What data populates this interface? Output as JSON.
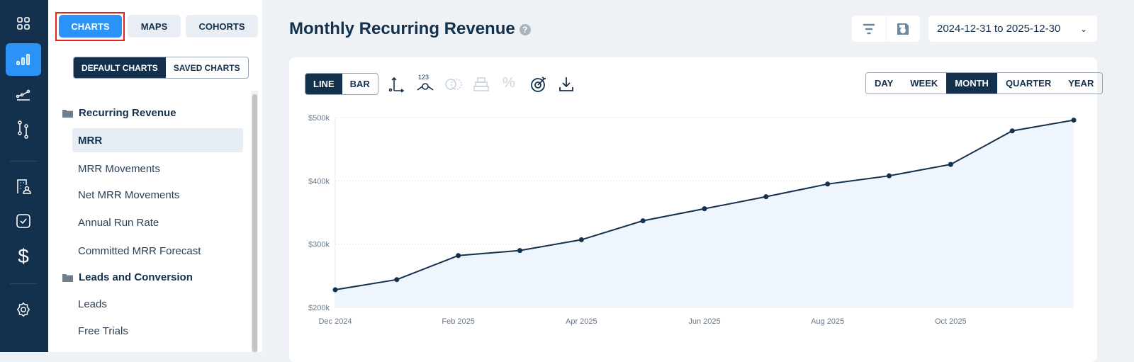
{
  "rail": {
    "items": [
      "dashboard-icon",
      "charts-icon",
      "trend-icon",
      "flow-icon",
      "customers-icon",
      "tasks-icon",
      "billing-icon",
      "settings-icon"
    ],
    "active": "charts-icon"
  },
  "sidebar": {
    "tabs": [
      "CHARTS",
      "MAPS",
      "COHORTS"
    ],
    "active_tab": "CHARTS",
    "segments": [
      "DEFAULT CHARTS",
      "SAVED CHARTS"
    ],
    "active_segment": "DEFAULT CHARTS",
    "groups": [
      {
        "label": "Recurring Revenue",
        "items": [
          "MRR",
          "MRR Movements",
          "Net MRR Movements",
          "Annual Run Rate",
          "Committed MRR Forecast"
        ]
      },
      {
        "label": "Leads and Conversion",
        "items": [
          "Leads",
          "Free Trials"
        ]
      }
    ],
    "selected": "MRR"
  },
  "header": {
    "title": "Monthly Recurring Revenue",
    "help": "?",
    "date_range": "2024-12-31 to 2025-12-30"
  },
  "toolbar": {
    "chart_types": [
      "LINE",
      "BAR"
    ],
    "active_type": "LINE",
    "periods": [
      "DAY",
      "WEEK",
      "MONTH",
      "QUARTER",
      "YEAR"
    ],
    "active_period": "MONTH",
    "number_label": "123",
    "percent": "%"
  },
  "colors": {
    "accent": "#2b93f7",
    "navy": "#13304d",
    "fill": "#eef5fd"
  },
  "chart_data": {
    "type": "area",
    "x": [
      "Dec 2024",
      "Jan 2025",
      "Feb 2025",
      "Mar 2025",
      "Apr 2025",
      "May 2025",
      "Jun 2025",
      "Jul 2025",
      "Aug 2025",
      "Sep 2025",
      "Oct 2025",
      "Nov 2025",
      "Dec 2025"
    ],
    "values": [
      228000,
      244000,
      282000,
      290000,
      307000,
      337000,
      356000,
      375000,
      395000,
      408000,
      426000,
      479000,
      496000
    ],
    "xticks": [
      "Dec 2024",
      "Feb 2025",
      "Apr 2025",
      "Jun 2025",
      "Aug 2025",
      "Oct 2025"
    ],
    "yticks": [
      "$200k",
      "$300k",
      "$400k",
      "$500k"
    ],
    "ylim": [
      200000,
      500000
    ],
    "grid": true
  }
}
